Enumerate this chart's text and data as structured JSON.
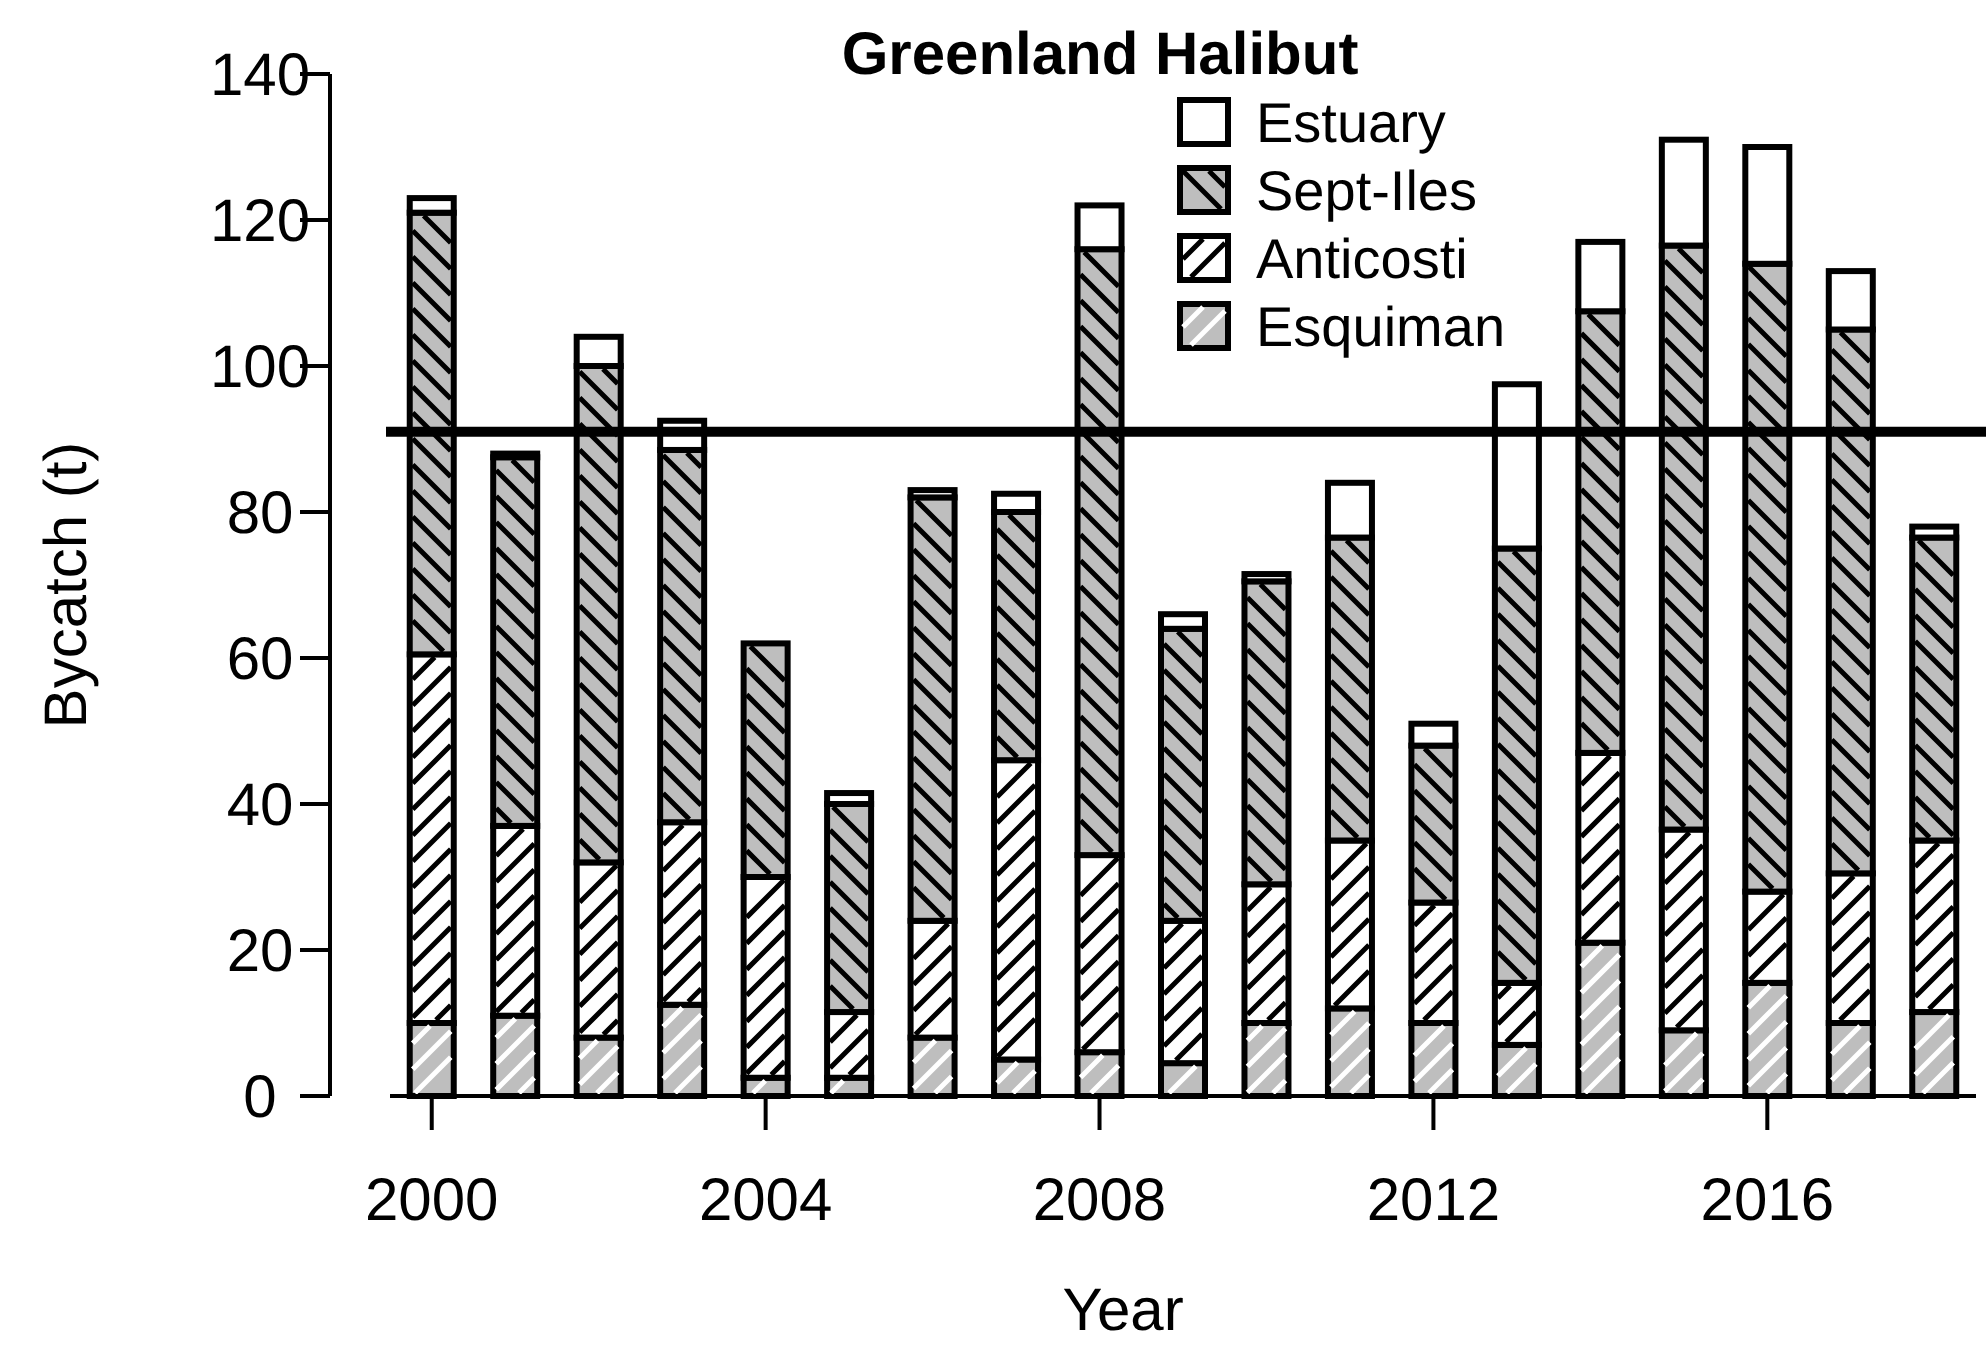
{
  "chart_data": {
    "type": "bar",
    "stacked": true,
    "title": "Greenland Halibut",
    "xlabel": "Year",
    "ylabel": "Bycatch (t)",
    "x": [
      2000,
      2001,
      2002,
      2003,
      2004,
      2005,
      2006,
      2007,
      2008,
      2009,
      2010,
      2011,
      2012,
      2013,
      2014,
      2015,
      2016,
      2017,
      2018
    ],
    "xlim": [
      1999.5,
      2018.5
    ],
    "xticks": [
      2000,
      2004,
      2008,
      2012,
      2016
    ],
    "ylim": [
      0,
      140
    ],
    "yticks": [
      0,
      20,
      40,
      60,
      80,
      100,
      120,
      140
    ],
    "series": [
      {
        "name": "Esquiman",
        "color": "#bebebe",
        "values": [
          10,
          11,
          8,
          12.5,
          2.5,
          2.5,
          8,
          5,
          6,
          4.5,
          10,
          12,
          10,
          7,
          21,
          9,
          15.5,
          10,
          11.5
        ]
      },
      {
        "name": "Anticosti",
        "color": "#ffffff",
        "values": [
          50.5,
          26,
          24,
          25,
          27.5,
          9,
          16,
          41,
          27,
          19.5,
          19,
          23,
          16.5,
          8.5,
          26,
          27.5,
          12.5,
          20.5,
          23.5
        ]
      },
      {
        "name": "Sept-Iles",
        "color": "#bebebe",
        "values": [
          60.5,
          50.5,
          68,
          51,
          32,
          28.5,
          58,
          34,
          83,
          40,
          41.5,
          41.5,
          21.5,
          59.5,
          60.5,
          80,
          86,
          74.5,
          41.5
        ]
      },
      {
        "name": "Estuary",
        "color": "#ffffff",
        "values": [
          2,
          0.5,
          4,
          4,
          0,
          1.5,
          1,
          2.5,
          6,
          2,
          1,
          7.5,
          3,
          22.5,
          9.5,
          14.5,
          16,
          8,
          1.5
        ]
      }
    ],
    "ref_lines": [
      {
        "axis": "y",
        "value": 91,
        "color": "#000000",
        "line_style": "solid"
      }
    ],
    "legend": "top",
    "grid": false
  }
}
